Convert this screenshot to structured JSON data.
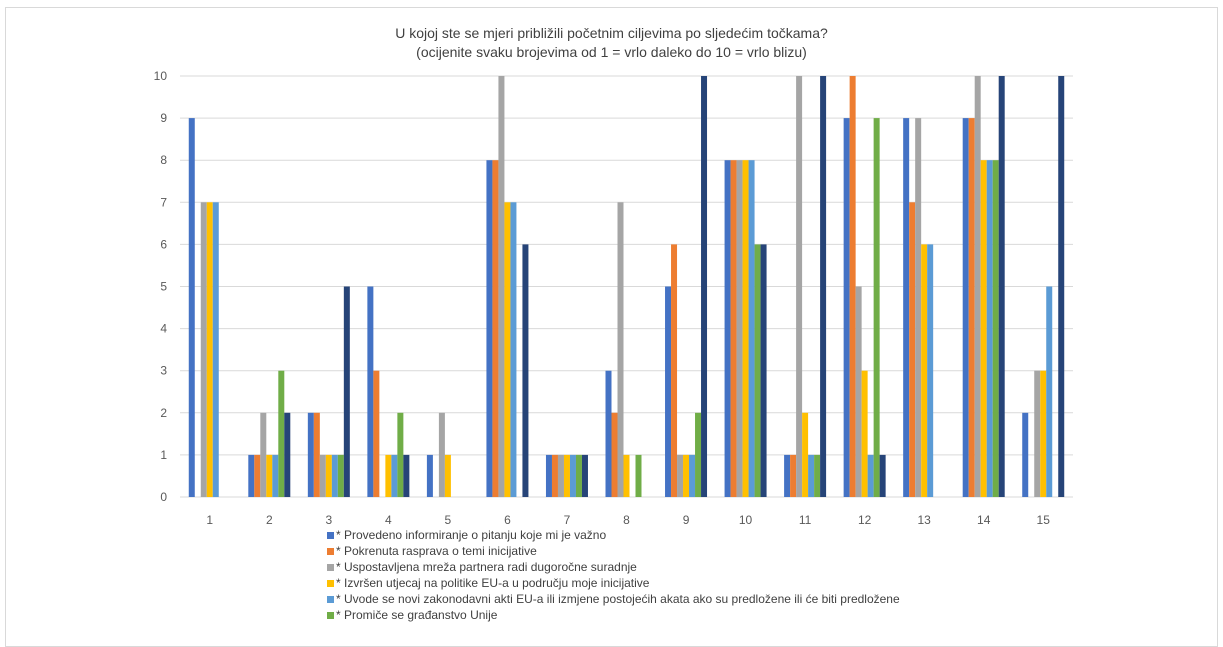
{
  "chart_data": {
    "type": "bar",
    "title": "U kojoj ste se mjeri približili početnim ciljevima po sljedećim točkama?",
    "subtitle": "(ocijenite svaku brojevima od 1 = vrlo daleko do 10 = vrlo blizu)",
    "categories": [
      "1",
      "2",
      "3",
      "4",
      "5",
      "6",
      "7",
      "8",
      "9",
      "10",
      "11",
      "12",
      "13",
      "14",
      "15"
    ],
    "ylim": [
      0,
      10
    ],
    "yticks": [
      0,
      1,
      2,
      3,
      4,
      5,
      6,
      7,
      8,
      9,
      10
    ],
    "grid": true,
    "legend_position": "bottom",
    "series": [
      {
        "name": "* Provedeno informiranje o pitanju koje mi je važno",
        "color": "#4472c4",
        "values": [
          9,
          1,
          2,
          5,
          1,
          8,
          1,
          3,
          5,
          8,
          1,
          9,
          9,
          9,
          2
        ]
      },
      {
        "name": "* Pokrenuta rasprava o temi inicijative",
        "color": "#ed7d31",
        "values": [
          0,
          1,
          2,
          3,
          0,
          8,
          1,
          2,
          6,
          8,
          1,
          10,
          7,
          9,
          0
        ]
      },
      {
        "name": "* Uspostavljena mreža partnera radi dugoročne suradnje",
        "color": "#a5a5a5",
        "values": [
          7,
          2,
          1,
          0,
          2,
          10,
          1,
          7,
          1,
          8,
          10,
          5,
          9,
          10,
          3
        ]
      },
      {
        "name": "* Izvršen utjecaj na politike EU-a u području moje inicijative",
        "color": "#ffc000",
        "values": [
          7,
          1,
          1,
          1,
          1,
          7,
          1,
          1,
          1,
          8,
          2,
          3,
          6,
          8,
          3
        ]
      },
      {
        "name": "* Uvode se novi zakonodavni akti EU-a ili izmjene postojećih akata ako su predložene ili će biti predložene",
        "color": "#5b9bd5",
        "values": [
          7,
          1,
          1,
          1,
          0,
          7,
          1,
          0,
          1,
          8,
          1,
          1,
          6,
          8,
          5
        ]
      },
      {
        "name": "* Promiče se građanstvo Unije",
        "color": "#70ad47",
        "values": [
          0,
          3,
          1,
          2,
          0,
          0,
          1,
          1,
          2,
          6,
          1,
          9,
          0,
          8,
          0
        ]
      },
      {
        "name": "",
        "color": "#264478",
        "values": [
          0,
          2,
          5,
          1,
          0,
          6,
          1,
          0,
          10,
          6,
          10,
          1,
          0,
          10,
          10
        ]
      }
    ]
  }
}
